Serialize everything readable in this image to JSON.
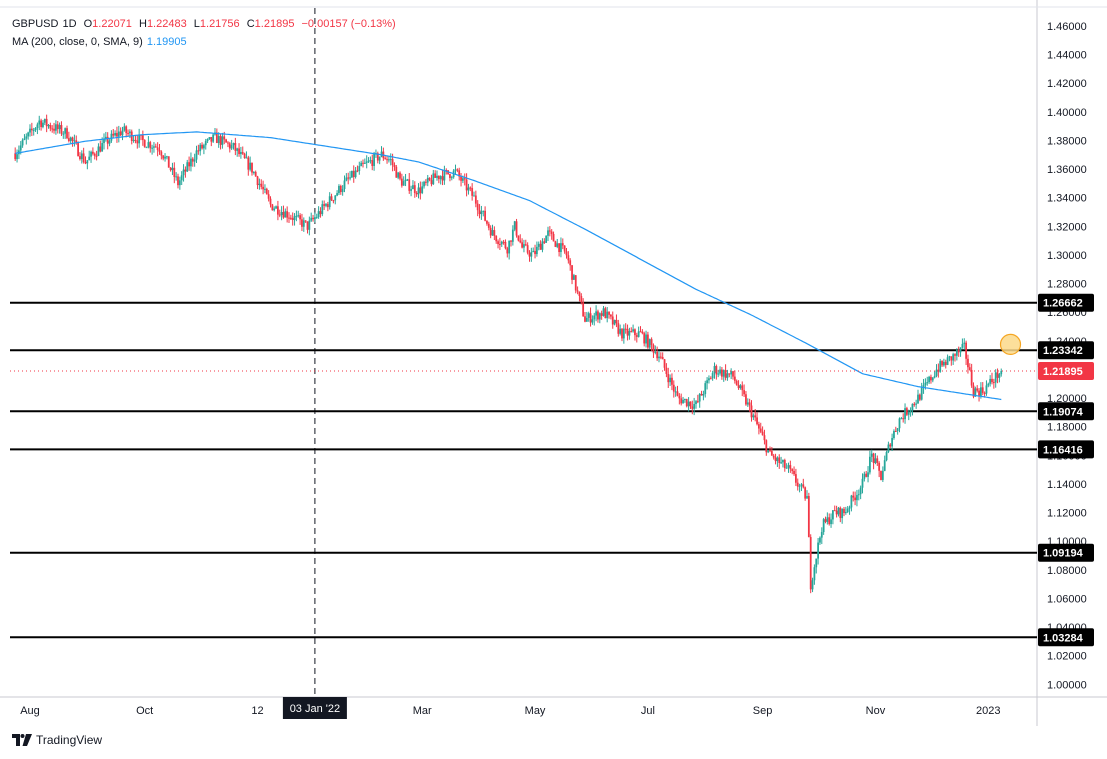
{
  "legend": {
    "symbol": "GBPUSD",
    "interval": "1D",
    "open_label": "O",
    "open": "1.22071",
    "high_label": "H",
    "high": "1.22483",
    "low_label": "L",
    "low": "1.21756",
    "close_label": "C",
    "close": "1.21895",
    "change": "−0.00157 (−0.13%)",
    "ma_label": "MA (200, close, 0, SMA, 9)",
    "ma_value": "1.19905"
  },
  "footer": {
    "brand": "TradingView"
  },
  "colors": {
    "up": "#26a69a",
    "down": "#f23645",
    "ma": "#2196f3",
    "hline": "#000000",
    "price_tag": "#f23645"
  },
  "chart_data": {
    "type": "candlestick",
    "title": "GBPUSD 1D",
    "ylim": [
      0.985,
      1.47
    ],
    "y_ticks": [
      "1.46000",
      "1.44000",
      "1.42000",
      "1.40000",
      "1.38000",
      "1.36000",
      "1.34000",
      "1.32000",
      "1.30000",
      "1.28000",
      "1.26000",
      "1.24000",
      "1.22000",
      "1.20000",
      "1.18000",
      "1.16000",
      "1.14000",
      "1.12000",
      "1.10000",
      "1.08000",
      "1.06000",
      "1.04000",
      "1.02000",
      "1.00000"
    ],
    "x_labels": [
      "Aug",
      "Oct",
      "12",
      "03 Jan '22",
      "Mar",
      "May",
      "Jul",
      "Sep",
      "Nov",
      "2023"
    ],
    "x_label_days": [
      0,
      62,
      123,
      154,
      212,
      273,
      334,
      396,
      457,
      518
    ],
    "highlighted_x_label": "03 Jan '22",
    "horizontal_levels": [
      "1.26662",
      "1.23342",
      "1.19074",
      "1.16416",
      "1.09194",
      "1.03284"
    ],
    "last_price": "1.21895",
    "price_anchor_days": [
      -8,
      5,
      20,
      30,
      40,
      50,
      60,
      70,
      80,
      90,
      100,
      110,
      120,
      130,
      140,
      150,
      160,
      170,
      180,
      190,
      195,
      200,
      210,
      220,
      230,
      240,
      250,
      258,
      262,
      266,
      272,
      280,
      290,
      300,
      310,
      320,
      330,
      340,
      350,
      360,
      370,
      380,
      390,
      400,
      410,
      420,
      422,
      428,
      435,
      440,
      450,
      455,
      460,
      465,
      470,
      480,
      490,
      500,
      505,
      510,
      515,
      525
    ],
    "price_anchor_closes": [
      1.371,
      1.3935,
      1.385,
      1.365,
      1.378,
      1.387,
      1.38,
      1.375,
      1.35,
      1.372,
      1.382,
      1.375,
      1.36,
      1.335,
      1.328,
      1.32,
      1.335,
      1.35,
      1.362,
      1.37,
      1.366,
      1.352,
      1.345,
      1.355,
      1.358,
      1.34,
      1.315,
      1.305,
      1.32,
      1.305,
      1.3,
      1.315,
      1.3,
      1.255,
      1.26,
      1.245,
      1.245,
      1.23,
      1.2,
      1.195,
      1.22,
      1.215,
      1.19,
      1.16,
      1.15,
      1.13,
      1.07,
      1.11,
      1.12,
      1.12,
      1.14,
      1.16,
      1.145,
      1.17,
      1.185,
      1.2,
      1.22,
      1.23,
      1.235,
      1.205,
      1.205,
      1.219
    ],
    "ma_anchor_days": [
      -8,
      30,
      60,
      90,
      130,
      160,
      190,
      210,
      240,
      270,
      300,
      330,
      360,
      390,
      420,
      450,
      480,
      510,
      525
    ],
    "ma_values": [
      1.371,
      1.3795,
      1.384,
      1.386,
      1.382,
      1.376,
      1.37,
      1.365,
      1.352,
      1.338,
      1.318,
      1.297,
      1.276,
      1.258,
      1.238,
      1.217,
      1.208,
      1.202,
      1.199
    ],
    "ma_name": "MA (200, close, 0, SMA, 9)"
  }
}
